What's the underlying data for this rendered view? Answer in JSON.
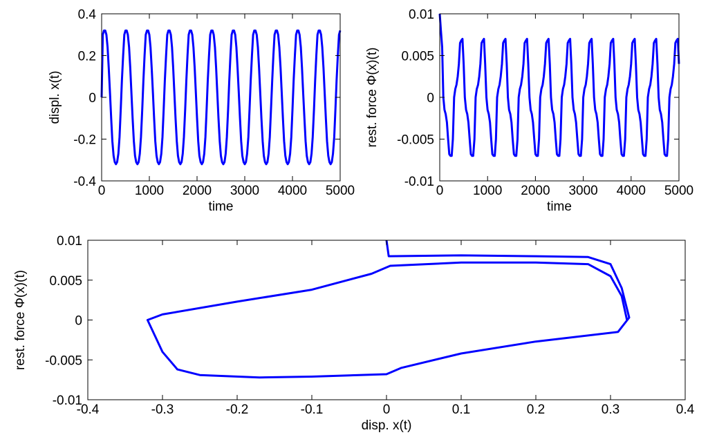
{
  "chart_data": [
    {
      "type": "line",
      "ylabel": "displ. x(t)",
      "xlabel": "time",
      "color": "#0000ff",
      "xlim": [
        0,
        5000
      ],
      "xticks": [
        0,
        1000,
        2000,
        3000,
        4000,
        5000
      ],
      "ylim": [
        -0.4,
        0.4
      ],
      "yticks": [
        -0.4,
        -0.2,
        0,
        0.2,
        0.4
      ],
      "x": [
        0,
        25,
        50,
        75,
        100,
        125,
        150,
        175,
        200,
        225,
        250,
        275,
        300,
        325,
        350,
        375,
        400,
        425,
        450,
        475,
        500,
        525,
        550,
        575,
        600,
        625,
        650,
        675,
        700,
        725,
        750,
        775,
        800,
        825,
        850,
        875,
        900,
        925,
        950,
        975,
        1000,
        1025,
        1050,
        1075,
        1100,
        1125,
        1150,
        1175,
        1200,
        1225,
        1250,
        1275,
        1300,
        1325,
        1350,
        1375,
        1400,
        1425,
        1450,
        1475,
        1500,
        1525,
        1550,
        1575,
        1600,
        1625,
        1650,
        1675,
        1700,
        1725,
        1750,
        1775,
        1800,
        1825,
        1850,
        1875,
        1900,
        1925,
        1950,
        1975,
        2000,
        2025,
        2050,
        2075,
        2100,
        2125,
        2150,
        2175,
        2200,
        2225,
        2250,
        2275,
        2300,
        2325,
        2350,
        2375,
        2400,
        2425,
        2450,
        2475,
        2500,
        2525,
        2550,
        2575,
        2600,
        2625,
        2650,
        2675,
        2700,
        2725,
        2750,
        2775,
        2800,
        2825,
        2850,
        2875,
        2900,
        2925,
        2950,
        2975,
        3000,
        3025,
        3050,
        3075,
        3100,
        3125,
        3150,
        3175,
        3200,
        3225,
        3250,
        3275,
        3300,
        3325,
        3350,
        3375,
        3400,
        3425,
        3450,
        3475,
        3500,
        3525,
        3550,
        3575,
        3600,
        3625,
        3650,
        3675,
        3700,
        3725,
        3750,
        3775,
        3800,
        3825,
        3850,
        3875,
        3900,
        3925,
        3950,
        3975,
        4000,
        4025,
        4050,
        4075,
        4100,
        4125,
        4150,
        4175,
        4200,
        4225,
        4250,
        4275,
        4300,
        4325,
        4350,
        4375,
        4400,
        4425,
        4450,
        4475,
        4500,
        4525,
        4550,
        4575,
        4600,
        4625,
        4650,
        4675,
        4700,
        4725,
        4750,
        4775,
        4800,
        4825,
        4850,
        4875,
        4900,
        4925,
        4950,
        4975,
        5000
      ],
      "values": [
        0,
        0.3,
        0.32,
        0.32,
        0.3,
        0.24,
        0.14,
        0.02,
        -0.1,
        -0.21,
        -0.28,
        -0.31,
        -0.32,
        -0.31,
        -0.27,
        -0.19,
        -0.06,
        0.08,
        0.2,
        0.3,
        0.32,
        0.32,
        0.3,
        0.24,
        0.14,
        0.02,
        -0.1,
        -0.21,
        -0.28,
        -0.31,
        -0.32,
        -0.31,
        -0.27,
        -0.19,
        -0.06,
        0.08,
        0.2,
        0.3,
        0.32,
        0.32,
        0.3,
        0.24,
        0.14,
        0.02,
        -0.1,
        -0.21,
        -0.28,
        -0.31,
        -0.32,
        -0.31,
        -0.27,
        -0.19,
        -0.06,
        0.08,
        0.2,
        0.3,
        0.32,
        0.32,
        0.3,
        0.24,
        0.14,
        0.02,
        -0.1,
        -0.21,
        -0.28,
        -0.31,
        -0.32,
        -0.31,
        -0.27,
        -0.19,
        -0.06,
        0.08,
        0.2,
        0.3,
        0.32,
        0.32,
        0.3,
        0.24,
        0.14,
        0.02,
        -0.1,
        -0.21,
        -0.28,
        -0.31,
        -0.32,
        -0.31,
        -0.27,
        -0.19,
        -0.06,
        0.08,
        0.2,
        0.3,
        0.32,
        0.32,
        0.3,
        0.24,
        0.14,
        0.02,
        -0.1,
        -0.21,
        -0.28,
        -0.31,
        -0.32,
        -0.31,
        -0.27,
        -0.19,
        -0.06,
        0.08,
        0.2,
        0.3,
        0.32,
        0.32,
        0.3,
        0.24,
        0.14,
        0.02,
        -0.1,
        -0.21,
        -0.28,
        -0.31,
        -0.32,
        -0.31,
        -0.27,
        -0.19,
        -0.06,
        0.08,
        0.2,
        0.3,
        0.32,
        0.32,
        0.3,
        0.24,
        0.14,
        0.02,
        -0.1,
        -0.21,
        -0.28,
        -0.31,
        -0.32,
        -0.31,
        -0.27,
        -0.19,
        -0.06,
        0.08,
        0.2,
        0.3,
        0.32,
        0.32,
        0.3,
        0.24,
        0.14,
        0.02,
        -0.1,
        -0.21,
        -0.28,
        -0.31,
        -0.32,
        -0.31,
        -0.27,
        -0.19,
        -0.06,
        0.08,
        0.2,
        0.3,
        0.32,
        0.32,
        0.3,
        0.24,
        0.14,
        0.02,
        -0.1,
        -0.21,
        -0.28,
        -0.31,
        -0.32,
        -0.31,
        -0.27,
        -0.19,
        -0.06,
        0.08,
        0.2,
        0.3,
        0.32,
        0.32,
        0.3,
        0.24,
        0.14,
        0.02,
        -0.1,
        -0.21,
        -0.28,
        -0.31,
        -0.32,
        -0.31,
        -0.27,
        -0.19,
        -0.06,
        0.08,
        0.2,
        0.3,
        0.32
      ]
    },
    {
      "type": "line",
      "ylabel": "rest. force Φ(x)(t)",
      "xlabel": "time",
      "color": "#0000ff",
      "xlim": [
        0,
        5000
      ],
      "xticks": [
        0,
        1000,
        2000,
        3000,
        4000,
        5000
      ],
      "ylim": [
        -0.01,
        0.01
      ],
      "yticks": [
        -0.01,
        -0.005,
        0,
        0.005,
        0.01
      ],
      "x": [
        0,
        25,
        50,
        75,
        100,
        125,
        150,
        175,
        200,
        225,
        250,
        275,
        300,
        325,
        350,
        375,
        400,
        425,
        450,
        475,
        500,
        525,
        550,
        575,
        600,
        625,
        650,
        675,
        700,
        725,
        750,
        775,
        800,
        825,
        850,
        875,
        900,
        925,
        950,
        975,
        1000,
        1025,
        1050,
        1075,
        1100,
        1125,
        1150,
        1175,
        1200,
        1225,
        1250,
        1275,
        1300,
        1325,
        1350,
        1375,
        1400,
        1425,
        1450,
        1475,
        1500,
        1525,
        1550,
        1575,
        1600,
        1625,
        1650,
        1675,
        1700,
        1725,
        1750,
        1775,
        1800,
        1825,
        1850,
        1875,
        1900,
        1925,
        1950,
        1975,
        2000,
        2025,
        2050,
        2075,
        2100,
        2125,
        2150,
        2175,
        2200,
        2225,
        2250,
        2275,
        2300,
        2325,
        2350,
        2375,
        2400,
        2425,
        2450,
        2475,
        2500,
        2525,
        2550,
        2575,
        2600,
        2625,
        2650,
        2675,
        2700,
        2725,
        2750,
        2775,
        2800,
        2825,
        2850,
        2875,
        2900,
        2925,
        2950,
        2975,
        3000,
        3025,
        3050,
        3075,
        3100,
        3125,
        3150,
        3175,
        3200,
        3225,
        3250,
        3275,
        3300,
        3325,
        3350,
        3375,
        3400,
        3425,
        3450,
        3475,
        3500,
        3525,
        3550,
        3575,
        3600,
        3625,
        3650,
        3675,
        3700,
        3725,
        3750,
        3775,
        3800,
        3825,
        3850,
        3875,
        3900,
        3925,
        3950,
        3975,
        4000,
        4025,
        4050,
        4075,
        4100,
        4125,
        4150,
        4175,
        4200,
        4225,
        4250,
        4275,
        4300,
        4325,
        4350,
        4375,
        4400,
        4425,
        4450,
        4475,
        4500,
        4525,
        4550,
        4575,
        4600,
        4625,
        4650,
        4675,
        4700,
        4725,
        4750,
        4775,
        4800,
        4825,
        4850,
        4875,
        4900,
        4925,
        4950,
        4975,
        5000
      ],
      "values": [
        0.01,
        0.008,
        0.006,
        0,
        -0.0015,
        -0.002,
        -0.003,
        -0.005,
        -0.0068,
        -0.007,
        -0.007,
        -0.005,
        0,
        0.001,
        0.0015,
        0.0025,
        0.004,
        0.0065,
        0.0068,
        0.007,
        0.004,
        0,
        -0.0015,
        -0.002,
        -0.003,
        -0.005,
        -0.0068,
        -0.007,
        -0.007,
        -0.005,
        0,
        0.001,
        0.0015,
        0.0025,
        0.004,
        0.0065,
        0.0068,
        0.007,
        0.004,
        0,
        -0.0015,
        -0.002,
        -0.003,
        -0.005,
        -0.0068,
        -0.007,
        -0.007,
        -0.005,
        0,
        0.001,
        0.0015,
        0.0025,
        0.004,
        0.0065,
        0.0068,
        0.007,
        0.004,
        0,
        -0.0015,
        -0.002,
        -0.003,
        -0.005,
        -0.0068,
        -0.007,
        -0.007,
        -0.005,
        0,
        0.001,
        0.0015,
        0.0025,
        0.004,
        0.0065,
        0.0068,
        0.007,
        0.004,
        0,
        -0.0015,
        -0.002,
        -0.003,
        -0.005,
        -0.0068,
        -0.007,
        -0.007,
        -0.005,
        0,
        0.001,
        0.0015,
        0.0025,
        0.004,
        0.0065,
        0.0068,
        0.007,
        0.004,
        0,
        -0.0015,
        -0.002,
        -0.003,
        -0.005,
        -0.0068,
        -0.007,
        -0.007,
        -0.005,
        0,
        0.001,
        0.0015,
        0.0025,
        0.004,
        0.0065,
        0.0068,
        0.007,
        0.004,
        0,
        -0.0015,
        -0.002,
        -0.003,
        -0.005,
        -0.0068,
        -0.007,
        -0.007,
        -0.005,
        0,
        0.001,
        0.0015,
        0.0025,
        0.004,
        0.0065,
        0.0068,
        0.007,
        0.004,
        0,
        -0.0015,
        -0.002,
        -0.003,
        -0.005,
        -0.0068,
        -0.007,
        -0.007,
        -0.005,
        0,
        0.001,
        0.0015,
        0.0025,
        0.004,
        0.0065,
        0.0068,
        0.007,
        0.004,
        0,
        -0.0015,
        -0.002,
        -0.003,
        -0.005,
        -0.0068,
        -0.007,
        -0.007,
        -0.005,
        0,
        0.001,
        0.0015,
        0.0025,
        0.004,
        0.0065,
        0.0068,
        0.007,
        0.004,
        0,
        -0.0015,
        -0.002,
        -0.003,
        -0.005,
        -0.0068,
        -0.007,
        -0.007,
        -0.005,
        0,
        0.001,
        0.0015,
        0.0025,
        0.004,
        0.0065,
        0.0068,
        0.007,
        0.004,
        0,
        -0.0015,
        -0.002,
        -0.003,
        -0.005,
        -0.0068,
        -0.007,
        -0.007,
        -0.005,
        0,
        0.001,
        0.0015,
        0.0025,
        0.004,
        0.0065,
        0.0068,
        0.007,
        0.004
      ]
    },
    {
      "type": "line",
      "ylabel": "rest. force Φ(x)(t)",
      "xlabel": "disp. x(t)",
      "color": "#0000ff",
      "xlim": [
        -0.4,
        0.4
      ],
      "xticks": [
        -0.4,
        -0.3,
        -0.2,
        -0.1,
        0,
        0.1,
        0.2,
        0.3,
        0.4
      ],
      "ylim": [
        -0.01,
        0.01
      ],
      "yticks": [
        -0.01,
        -0.005,
        0,
        0.005,
        0.01
      ],
      "x": [
        0,
        0.003,
        0.1,
        0.2,
        0.27,
        0.3,
        0.315,
        0.325,
        0.31,
        0.2,
        0.1,
        0.02,
        0,
        -0.1,
        -0.17,
        -0.25,
        -0.28,
        -0.3,
        -0.32,
        -0.3,
        -0.2,
        -0.1,
        -0.02,
        0.005,
        0.1,
        0.2,
        0.27,
        0.3,
        0.315,
        0.322
      ],
      "values": [
        0.01,
        0.008,
        0.0081,
        0.008,
        0.0079,
        0.007,
        0.004,
        0.0003,
        -0.0015,
        -0.0027,
        -0.0042,
        -0.006,
        -0.0068,
        -0.0071,
        -0.0072,
        -0.0069,
        -0.0062,
        -0.004,
        0,
        0.0007,
        0.0023,
        0.0038,
        0.0058,
        0.0068,
        0.0072,
        0.0072,
        0.007,
        0.0055,
        0.003,
        0
      ]
    }
  ]
}
